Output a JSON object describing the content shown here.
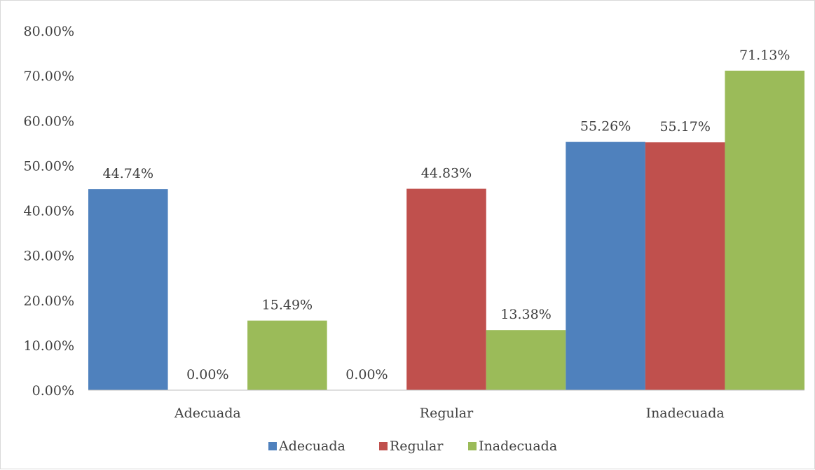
{
  "chart_data": {
    "type": "bar",
    "categories": [
      "Adecuada",
      "Regular",
      "Inadecuada"
    ],
    "series": [
      {
        "name": "Adecuada",
        "color": "#4f81bd",
        "values": [
          44.74,
          0.0,
          55.26
        ]
      },
      {
        "name": "Regular",
        "color": "#c0504d",
        "values": [
          0.0,
          44.83,
          55.17
        ]
      },
      {
        "name": "Inadecuada",
        "color": "#9bbb59",
        "values": [
          15.49,
          13.38,
          71.13
        ]
      }
    ],
    "title": "",
    "xlabel": "",
    "ylabel": "",
    "ylim": [
      0,
      80
    ],
    "ytick_step": 10,
    "ytick_labels": [
      "0.00%",
      "10.00%",
      "20.00%",
      "30.00%",
      "40.00%",
      "50.00%",
      "60.00%",
      "70.00%",
      "80.00%"
    ],
    "data_labels": [
      [
        "44.74%",
        "0.00%",
        "15.49%"
      ],
      [
        "0.00%",
        "44.83%",
        "13.38%"
      ],
      [
        "55.26%",
        "55.17%",
        "71.13%"
      ]
    ],
    "legend_position": "bottom",
    "grid": false
  }
}
